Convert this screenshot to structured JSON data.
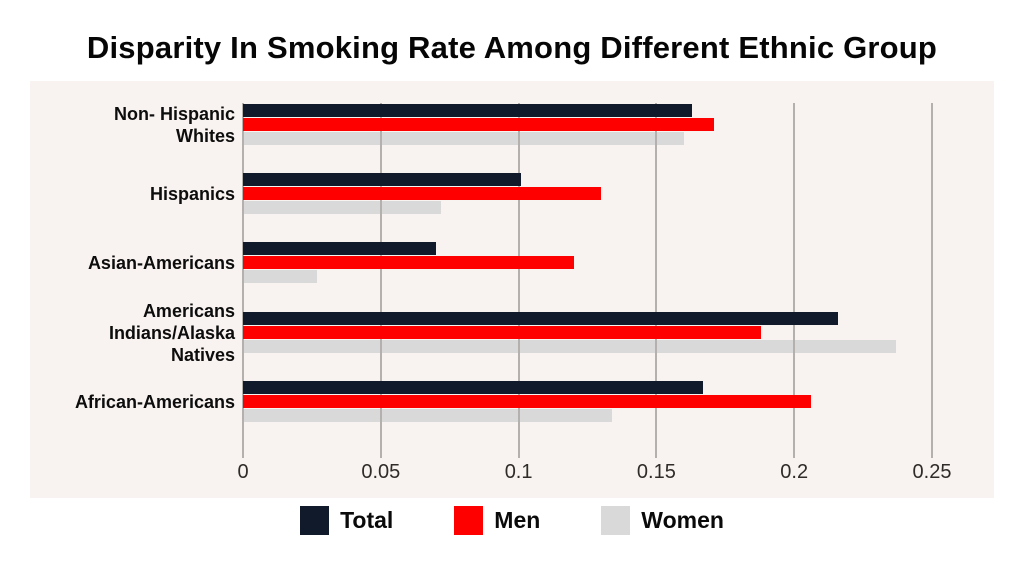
{
  "chart_data": {
    "type": "bar",
    "orientation": "horizontal",
    "title": "Disparity In Smoking Rate Among Different Ethnic Group",
    "categories": [
      "Non- Hispanic Whites",
      "Hispanics",
      "Asian-Americans",
      "Americans Indians/Alaska Natives",
      "African-Americans"
    ],
    "category_label_lines": [
      [
        "Non- Hispanic",
        "Whites"
      ],
      [
        "Hispanics"
      ],
      [
        "Asian-Americans"
      ],
      [
        "Americans",
        "Indians/Alaska",
        "Natives"
      ],
      [
        "African-Americans"
      ]
    ],
    "series": [
      {
        "name": "Total",
        "color": "#111a2b",
        "values": [
          0.163,
          0.101,
          0.07,
          0.216,
          0.167
        ]
      },
      {
        "name": "Men",
        "color": "#fe0000",
        "values": [
          0.171,
          0.13,
          0.12,
          0.188,
          0.206
        ]
      },
      {
        "name": "Women",
        "color": "#d9d9d9",
        "values": [
          0.16,
          0.072,
          0.027,
          0.237,
          0.134
        ]
      }
    ],
    "xlim": [
      0,
      0.25
    ],
    "xtick_labels": [
      "0",
      "0.05",
      "0.1",
      "0.15",
      "0.2",
      "0.25"
    ],
    "xtick_values": [
      0,
      0.05,
      0.1,
      0.15,
      0.2,
      0.25
    ],
    "grid": true,
    "legend_position": "bottom",
    "colors": {
      "panel_bg": "#f8f3f0",
      "gridline": "#b4b0ad",
      "axis_text": "#2e2b28",
      "label_text": "#0d0d0d",
      "page_bg": "#ffffff"
    }
  }
}
